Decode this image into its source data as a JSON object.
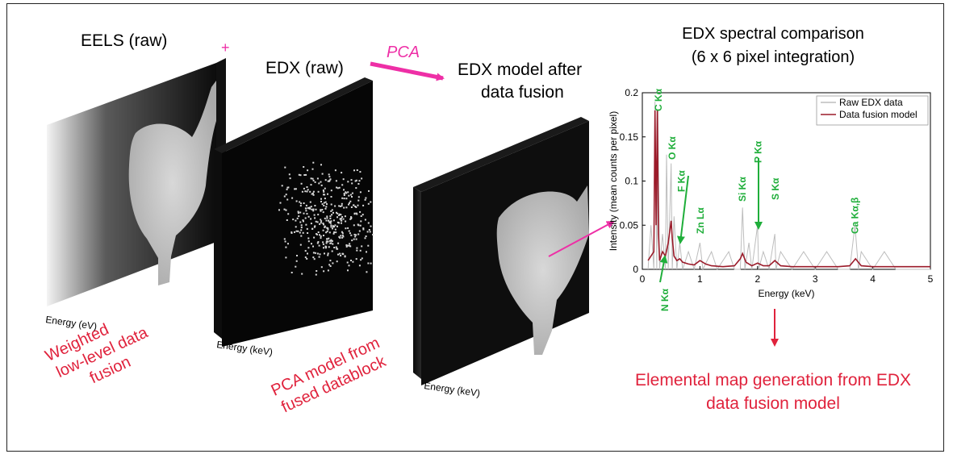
{
  "labels": {
    "eels_title": "EELS (raw)",
    "plus": "+",
    "edx_raw_title": "EDX (raw)",
    "pca_arrow": "PCA",
    "edx_model_title_1": "EDX model after",
    "edx_model_title_2": "data fusion",
    "eels_axis": "Energy (eV)",
    "edx_axis": "Energy (keV)",
    "model_axis": "Energy (keV)",
    "weighted_1": "Weighted",
    "weighted_2": "low-level data",
    "weighted_3": "fusion",
    "pca_model_1": "PCA model from",
    "pca_model_2": "fused datablock",
    "final_1": "Elemental map generation from EDX",
    "final_2": "data fusion model"
  },
  "colors": {
    "magenta": "#ee2fa6",
    "red_text": "#e0223c",
    "green": "#1fae3a",
    "raw_series": "#bdbdbd",
    "model_series": "#9b1b2a"
  },
  "chart_data": {
    "type": "line",
    "title": "EDX spectral comparison",
    "subtitle": "(6 x 6 pixel integration)",
    "xlabel": "Energy (keV)",
    "ylabel": "Intensity (mean counts per pixel)",
    "xlim": [
      0,
      5
    ],
    "ylim": [
      0,
      0.2
    ],
    "xticks": [
      "0",
      "1",
      "2",
      "3",
      "4",
      "5"
    ],
    "yticks": [
      "0",
      "0.05",
      "0.1",
      "0.15",
      "0.2"
    ],
    "grid": false,
    "legend_position": "top-right",
    "series": [
      {
        "name": "Raw EDX data",
        "x": [
          0.1,
          0.15,
          0.2,
          0.22,
          0.25,
          0.27,
          0.3,
          0.35,
          0.4,
          0.42,
          0.45,
          0.5,
          0.52,
          0.55,
          0.6,
          0.65,
          0.7,
          0.8,
          0.9,
          1.0,
          1.05,
          1.2,
          1.3,
          1.5,
          1.6,
          1.7,
          1.74,
          1.78,
          1.85,
          1.9,
          2.0,
          2.02,
          2.1,
          2.2,
          2.3,
          2.32,
          2.4,
          2.6,
          2.8,
          3.0,
          3.2,
          3.4,
          3.6,
          3.69,
          3.75,
          3.8,
          4.0,
          4.2,
          4.4,
          4.6,
          4.8,
          5.0
        ],
        "y": [
          0.0,
          0.05,
          0.0,
          0.19,
          0.0,
          0.18,
          0.0,
          0.04,
          0.0,
          0.13,
          0.0,
          0.12,
          0.0,
          0.06,
          0.0,
          0.03,
          0.0,
          0.02,
          0.0,
          0.03,
          0.0,
          0.02,
          0.0,
          0.02,
          0.0,
          0.0,
          0.07,
          0.0,
          0.03,
          0.0,
          0.05,
          0.0,
          0.02,
          0.0,
          0.04,
          0.0,
          0.02,
          0.0,
          0.02,
          0.0,
          0.02,
          0.0,
          0.0,
          0.05,
          0.0,
          0.02,
          0.0,
          0.02,
          0.0,
          0.0,
          0.0,
          0.0
        ]
      },
      {
        "name": "Data fusion model",
        "x": [
          0.1,
          0.15,
          0.2,
          0.22,
          0.24,
          0.26,
          0.28,
          0.3,
          0.35,
          0.4,
          0.45,
          0.5,
          0.52,
          0.55,
          0.6,
          0.65,
          0.7,
          0.8,
          0.9,
          1.0,
          1.1,
          1.2,
          1.4,
          1.6,
          1.7,
          1.74,
          1.8,
          1.9,
          2.0,
          2.1,
          2.2,
          2.3,
          2.4,
          2.6,
          2.8,
          3.0,
          3.2,
          3.4,
          3.6,
          3.7,
          3.8,
          4.0,
          4.2,
          4.5,
          5.0
        ],
        "y": [
          0.01,
          0.015,
          0.02,
          0.18,
          0.05,
          0.18,
          0.04,
          0.01,
          0.02,
          0.015,
          0.03,
          0.055,
          0.035,
          0.015,
          0.01,
          0.012,
          0.008,
          0.006,
          0.005,
          0.01,
          0.006,
          0.004,
          0.003,
          0.004,
          0.012,
          0.018,
          0.008,
          0.004,
          0.007,
          0.004,
          0.004,
          0.01,
          0.004,
          0.003,
          0.003,
          0.003,
          0.003,
          0.003,
          0.004,
          0.012,
          0.004,
          0.003,
          0.003,
          0.003,
          0.003
        ]
      }
    ],
    "annotations": [
      {
        "text": "C Kα",
        "x": 0.28
      },
      {
        "text": "O Kα",
        "x": 0.52
      },
      {
        "text": "F Kα",
        "x": 0.68
      },
      {
        "text": "Zn Lα",
        "x": 1.01
      },
      {
        "text": "Si Kα",
        "x": 1.74
      },
      {
        "text": "P Kα",
        "x": 2.01
      },
      {
        "text": "S Kα",
        "x": 2.31
      },
      {
        "text": "Ca Kα,β",
        "x": 3.69
      },
      {
        "text": "N Kα",
        "x": 0.39
      }
    ]
  }
}
